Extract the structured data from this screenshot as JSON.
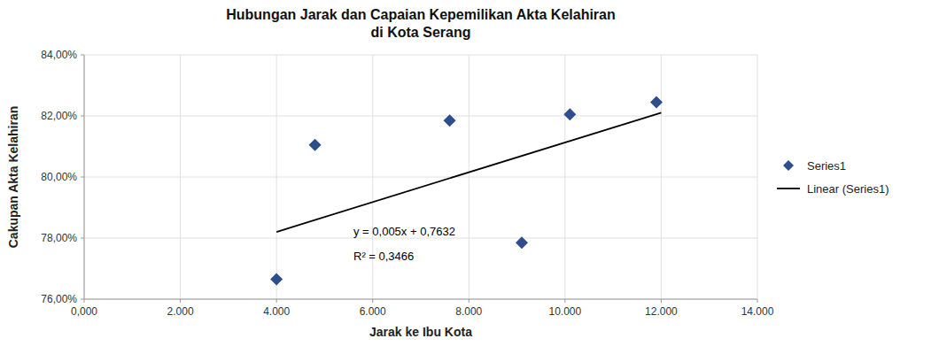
{
  "chart_data": {
    "type": "scatter",
    "title": "Hubungan Jarak dan Capaian Kepemilikan Akta Kelahiran",
    "subtitle": "di Kota Serang",
    "x_label": "Jarak ke Ibu Kota",
    "y_label": "Cakupan Akta Kelahiran",
    "x": [
      4000,
      4800,
      7600,
      9100,
      10100,
      11900
    ],
    "series": [
      {
        "name": "Series1",
        "color": "#2E4D8B",
        "marker": "diamond",
        "values": [
          0.7665,
          0.8105,
          0.8185,
          0.7785,
          0.8205,
          0.8245
        ]
      },
      {
        "name": "Linear (Series1)",
        "type": "line",
        "color": "#000000",
        "line_style": "solid",
        "x": [
          4000,
          12000
        ],
        "values": [
          0.78202,
          0.82106
        ]
      }
    ],
    "annotations": [
      {
        "text": "y = 0,005x + 0,7632"
      },
      {
        "text": "R² = 0,3466"
      }
    ],
    "xlim": [
      0,
      14000
    ],
    "ylim": [
      0.76,
      0.84
    ],
    "xticks": [
      {
        "value": 0,
        "label": "0,000"
      },
      {
        "value": 2000,
        "label": "2.000"
      },
      {
        "value": 4000,
        "label": "4.000"
      },
      {
        "value": 6000,
        "label": "6.000"
      },
      {
        "value": 8000,
        "label": "8.000"
      },
      {
        "value": 10000,
        "label": "10.000"
      },
      {
        "value": 12000,
        "label": "12.000"
      },
      {
        "value": 14000,
        "label": "14.000"
      }
    ],
    "yticks": [
      {
        "value": 0.76,
        "label": "76,00%"
      },
      {
        "value": 0.78,
        "label": "78,00%"
      },
      {
        "value": 0.8,
        "label": "80,00%"
      },
      {
        "value": 0.82,
        "label": "82,00%"
      },
      {
        "value": 0.84,
        "label": "84,00%"
      }
    ],
    "grid": true,
    "legend": "right"
  }
}
